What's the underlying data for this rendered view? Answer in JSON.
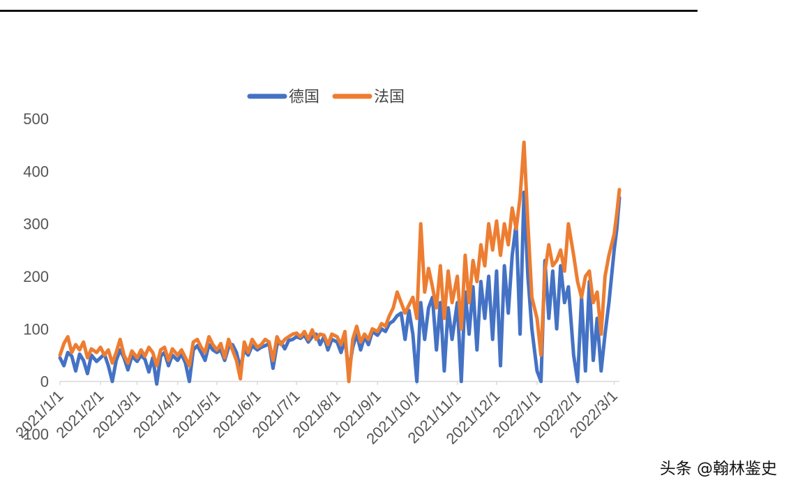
{
  "watermark": "头条 @翰林鉴史",
  "chart_data": {
    "type": "line",
    "title": "",
    "xlabel": "",
    "ylabel": "",
    "ylim": [
      -100,
      500
    ],
    "yticks": [
      -100,
      0,
      100,
      200,
      300,
      400,
      500
    ],
    "x_range": [
      "2021-01-01",
      "2022-03-05"
    ],
    "xtick_labels": [
      "2021/1/1",
      "2021/2/1",
      "2021/3/1",
      "2021/4/1",
      "2021/5/1",
      "2021/6/1",
      "2021/7/1",
      "2021/8/1",
      "2021/9/1",
      "2021/10/1",
      "2021/11/1",
      "2021/12/1",
      "2022/1/1",
      "2022/2/1",
      "2022/3/1"
    ],
    "xtick_dates": [
      "2021-01-01",
      "2021-02-01",
      "2021-03-01",
      "2021-04-01",
      "2021-05-01",
      "2021-06-01",
      "2021-07-01",
      "2021-08-01",
      "2021-09-01",
      "2021-10-01",
      "2021-11-01",
      "2021-12-01",
      "2022-01-01",
      "2022-02-01",
      "2022-03-01"
    ],
    "legend_position": "top",
    "grid": false,
    "series": [
      {
        "name": "德国",
        "color": "#4472C4",
        "points": [
          [
            "2021-01-01",
            45
          ],
          [
            "2021-01-04",
            30
          ],
          [
            "2021-01-07",
            55
          ],
          [
            "2021-01-10",
            48
          ],
          [
            "2021-01-13",
            20
          ],
          [
            "2021-01-16",
            52
          ],
          [
            "2021-01-19",
            40
          ],
          [
            "2021-01-22",
            15
          ],
          [
            "2021-01-25",
            50
          ],
          [
            "2021-01-29",
            38
          ],
          [
            "2021-02-01",
            45
          ],
          [
            "2021-02-04",
            52
          ],
          [
            "2021-02-07",
            30
          ],
          [
            "2021-02-10",
            0
          ],
          [
            "2021-02-13",
            40
          ],
          [
            "2021-02-16",
            60
          ],
          [
            "2021-02-19",
            45
          ],
          [
            "2021-02-22",
            22
          ],
          [
            "2021-02-25",
            48
          ],
          [
            "2021-03-01",
            38
          ],
          [
            "2021-03-04",
            50
          ],
          [
            "2021-03-07",
            42
          ],
          [
            "2021-03-10",
            18
          ],
          [
            "2021-03-13",
            45
          ],
          [
            "2021-03-16",
            -5
          ],
          [
            "2021-03-19",
            48
          ],
          [
            "2021-03-22",
            55
          ],
          [
            "2021-03-25",
            30
          ],
          [
            "2021-03-28",
            50
          ],
          [
            "2021-04-01",
            40
          ],
          [
            "2021-04-04",
            52
          ],
          [
            "2021-04-07",
            35
          ],
          [
            "2021-04-10",
            0
          ],
          [
            "2021-04-13",
            60
          ],
          [
            "2021-04-16",
            68
          ],
          [
            "2021-04-19",
            55
          ],
          [
            "2021-04-22",
            40
          ],
          [
            "2021-04-25",
            70
          ],
          [
            "2021-04-28",
            60
          ],
          [
            "2021-05-01",
            55
          ],
          [
            "2021-05-04",
            60
          ],
          [
            "2021-05-07",
            40
          ],
          [
            "2021-05-10",
            65
          ],
          [
            "2021-05-13",
            70
          ],
          [
            "2021-05-16",
            55
          ],
          [
            "2021-05-19",
            25
          ],
          [
            "2021-05-22",
            60
          ],
          [
            "2021-05-25",
            50
          ],
          [
            "2021-05-28",
            68
          ],
          [
            "2021-06-01",
            60
          ],
          [
            "2021-06-04",
            65
          ],
          [
            "2021-06-07",
            68
          ],
          [
            "2021-06-10",
            72
          ],
          [
            "2021-06-13",
            25
          ],
          [
            "2021-06-16",
            70
          ],
          [
            "2021-06-19",
            75
          ],
          [
            "2021-06-22",
            62
          ],
          [
            "2021-06-25",
            78
          ],
          [
            "2021-06-28",
            80
          ],
          [
            "2021-07-01",
            85
          ],
          [
            "2021-07-04",
            82
          ],
          [
            "2021-07-07",
            88
          ],
          [
            "2021-07-10",
            75
          ],
          [
            "2021-07-13",
            85
          ],
          [
            "2021-07-16",
            90
          ],
          [
            "2021-07-19",
            70
          ],
          [
            "2021-07-22",
            85
          ],
          [
            "2021-07-25",
            60
          ],
          [
            "2021-07-28",
            80
          ],
          [
            "2021-08-01",
            75
          ],
          [
            "2021-08-04",
            55
          ],
          [
            "2021-08-07",
            80
          ],
          [
            "2021-08-10",
            20
          ],
          [
            "2021-08-13",
            65
          ],
          [
            "2021-08-16",
            90
          ],
          [
            "2021-08-19",
            60
          ],
          [
            "2021-08-22",
            85
          ],
          [
            "2021-08-25",
            70
          ],
          [
            "2021-08-28",
            95
          ],
          [
            "2021-09-01",
            88
          ],
          [
            "2021-09-04",
            100
          ],
          [
            "2021-09-07",
            95
          ],
          [
            "2021-09-10",
            110
          ],
          [
            "2021-09-13",
            115
          ],
          [
            "2021-09-16",
            125
          ],
          [
            "2021-09-19",
            130
          ],
          [
            "2021-09-22",
            80
          ],
          [
            "2021-09-25",
            135
          ],
          [
            "2021-09-28",
            90
          ],
          [
            "2021-10-01",
            0
          ],
          [
            "2021-10-04",
            150
          ],
          [
            "2021-10-07",
            80
          ],
          [
            "2021-10-10",
            140
          ],
          [
            "2021-10-13",
            160
          ],
          [
            "2021-10-16",
            60
          ],
          [
            "2021-10-19",
            150
          ],
          [
            "2021-10-22",
            20
          ],
          [
            "2021-10-25",
            140
          ],
          [
            "2021-10-28",
            80
          ],
          [
            "2021-11-01",
            150
          ],
          [
            "2021-11-04",
            0
          ],
          [
            "2021-11-07",
            170
          ],
          [
            "2021-11-10",
            90
          ],
          [
            "2021-11-13",
            180
          ],
          [
            "2021-11-16",
            60
          ],
          [
            "2021-11-19",
            190
          ],
          [
            "2021-11-22",
            120
          ],
          [
            "2021-11-25",
            200
          ],
          [
            "2021-11-28",
            80
          ],
          [
            "2021-12-01",
            210
          ],
          [
            "2021-12-04",
            30
          ],
          [
            "2021-12-07",
            220
          ],
          [
            "2021-12-10",
            130
          ],
          [
            "2021-12-13",
            240
          ],
          [
            "2021-12-16",
            300
          ],
          [
            "2021-12-19",
            90
          ],
          [
            "2021-12-22",
            360
          ],
          [
            "2021-12-25",
            200
          ],
          [
            "2021-12-28",
            100
          ],
          [
            "2022-01-01",
            20
          ],
          [
            "2022-01-04",
            0
          ],
          [
            "2022-01-07",
            230
          ],
          [
            "2022-01-10",
            120
          ],
          [
            "2022-01-13",
            210
          ],
          [
            "2022-01-16",
            100
          ],
          [
            "2022-01-19",
            220
          ],
          [
            "2022-01-22",
            150
          ],
          [
            "2022-01-25",
            180
          ],
          [
            "2022-01-29",
            50
          ],
          [
            "2022-02-01",
            0
          ],
          [
            "2022-02-04",
            160
          ],
          [
            "2022-02-07",
            20
          ],
          [
            "2022-02-10",
            190
          ],
          [
            "2022-02-13",
            40
          ],
          [
            "2022-02-16",
            120
          ],
          [
            "2022-02-19",
            20
          ],
          [
            "2022-02-22",
            90
          ],
          [
            "2022-02-25",
            150
          ],
          [
            "2022-03-01",
            250
          ],
          [
            "2022-03-03",
            290
          ],
          [
            "2022-03-05",
            350
          ]
        ]
      },
      {
        "name": "法国",
        "color": "#ED7D31",
        "points": [
          [
            "2021-01-01",
            50
          ],
          [
            "2021-01-04",
            72
          ],
          [
            "2021-01-07",
            85
          ],
          [
            "2021-01-10",
            55
          ],
          [
            "2021-01-13",
            70
          ],
          [
            "2021-01-16",
            60
          ],
          [
            "2021-01-19",
            75
          ],
          [
            "2021-01-22",
            45
          ],
          [
            "2021-01-25",
            62
          ],
          [
            "2021-01-29",
            55
          ],
          [
            "2021-02-01",
            65
          ],
          [
            "2021-02-04",
            50
          ],
          [
            "2021-02-07",
            60
          ],
          [
            "2021-02-10",
            35
          ],
          [
            "2021-02-13",
            55
          ],
          [
            "2021-02-16",
            80
          ],
          [
            "2021-02-19",
            50
          ],
          [
            "2021-02-22",
            35
          ],
          [
            "2021-02-25",
            58
          ],
          [
            "2021-03-01",
            45
          ],
          [
            "2021-03-04",
            60
          ],
          [
            "2021-03-07",
            48
          ],
          [
            "2021-03-10",
            65
          ],
          [
            "2021-03-13",
            55
          ],
          [
            "2021-03-16",
            30
          ],
          [
            "2021-03-19",
            60
          ],
          [
            "2021-03-22",
            65
          ],
          [
            "2021-03-25",
            40
          ],
          [
            "2021-03-28",
            62
          ],
          [
            "2021-04-01",
            50
          ],
          [
            "2021-04-04",
            60
          ],
          [
            "2021-04-07",
            45
          ],
          [
            "2021-04-10",
            30
          ],
          [
            "2021-04-13",
            75
          ],
          [
            "2021-04-16",
            80
          ],
          [
            "2021-04-19",
            65
          ],
          [
            "2021-04-22",
            55
          ],
          [
            "2021-04-25",
            85
          ],
          [
            "2021-04-28",
            70
          ],
          [
            "2021-05-01",
            60
          ],
          [
            "2021-05-04",
            72
          ],
          [
            "2021-05-07",
            45
          ],
          [
            "2021-05-10",
            80
          ],
          [
            "2021-05-13",
            60
          ],
          [
            "2021-05-16",
            40
          ],
          [
            "2021-05-19",
            5
          ],
          [
            "2021-05-22",
            75
          ],
          [
            "2021-05-25",
            55
          ],
          [
            "2021-05-28",
            80
          ],
          [
            "2021-06-01",
            65
          ],
          [
            "2021-06-04",
            70
          ],
          [
            "2021-06-07",
            80
          ],
          [
            "2021-06-10",
            75
          ],
          [
            "2021-06-13",
            40
          ],
          [
            "2021-06-16",
            85
          ],
          [
            "2021-06-19",
            70
          ],
          [
            "2021-06-22",
            80
          ],
          [
            "2021-06-25",
            85
          ],
          [
            "2021-06-28",
            90
          ],
          [
            "2021-07-01",
            92
          ],
          [
            "2021-07-04",
            85
          ],
          [
            "2021-07-07",
            95
          ],
          [
            "2021-07-10",
            80
          ],
          [
            "2021-07-13",
            98
          ],
          [
            "2021-07-16",
            80
          ],
          [
            "2021-07-19",
            90
          ],
          [
            "2021-07-22",
            88
          ],
          [
            "2021-07-25",
            70
          ],
          [
            "2021-07-28",
            90
          ],
          [
            "2021-08-01",
            85
          ],
          [
            "2021-08-04",
            70
          ],
          [
            "2021-08-07",
            95
          ],
          [
            "2021-08-10",
            0
          ],
          [
            "2021-08-13",
            80
          ],
          [
            "2021-08-16",
            105
          ],
          [
            "2021-08-19",
            75
          ],
          [
            "2021-08-22",
            90
          ],
          [
            "2021-08-25",
            80
          ],
          [
            "2021-08-28",
            100
          ],
          [
            "2021-09-01",
            95
          ],
          [
            "2021-09-04",
            110
          ],
          [
            "2021-09-07",
            105
          ],
          [
            "2021-09-10",
            125
          ],
          [
            "2021-09-13",
            140
          ],
          [
            "2021-09-16",
            170
          ],
          [
            "2021-09-19",
            150
          ],
          [
            "2021-09-22",
            130
          ],
          [
            "2021-09-25",
            145
          ],
          [
            "2021-09-28",
            160
          ],
          [
            "2021-10-01",
            120
          ],
          [
            "2021-10-04",
            300
          ],
          [
            "2021-10-07",
            170
          ],
          [
            "2021-10-10",
            215
          ],
          [
            "2021-10-13",
            180
          ],
          [
            "2021-10-16",
            140
          ],
          [
            "2021-10-19",
            220
          ],
          [
            "2021-10-22",
            120
          ],
          [
            "2021-10-25",
            210
          ],
          [
            "2021-10-28",
            150
          ],
          [
            "2021-11-01",
            200
          ],
          [
            "2021-11-04",
            100
          ],
          [
            "2021-11-07",
            240
          ],
          [
            "2021-11-10",
            150
          ],
          [
            "2021-11-13",
            230
          ],
          [
            "2021-11-16",
            190
          ],
          [
            "2021-11-19",
            260
          ],
          [
            "2021-11-22",
            220
          ],
          [
            "2021-11-25",
            300
          ],
          [
            "2021-11-28",
            250
          ],
          [
            "2021-12-01",
            305
          ],
          [
            "2021-12-04",
            240
          ],
          [
            "2021-12-07",
            300
          ],
          [
            "2021-12-10",
            260
          ],
          [
            "2021-12-13",
            330
          ],
          [
            "2021-12-16",
            290
          ],
          [
            "2021-12-19",
            350
          ],
          [
            "2021-12-22",
            455
          ],
          [
            "2021-12-25",
            300
          ],
          [
            "2021-12-28",
            160
          ],
          [
            "2022-01-01",
            120
          ],
          [
            "2022-01-04",
            50
          ],
          [
            "2022-01-07",
            210
          ],
          [
            "2022-01-10",
            260
          ],
          [
            "2022-01-13",
            220
          ],
          [
            "2022-01-16",
            230
          ],
          [
            "2022-01-19",
            250
          ],
          [
            "2022-01-22",
            210
          ],
          [
            "2022-01-25",
            300
          ],
          [
            "2022-01-29",
            240
          ],
          [
            "2022-02-01",
            190
          ],
          [
            "2022-02-04",
            160
          ],
          [
            "2022-02-07",
            200
          ],
          [
            "2022-02-10",
            210
          ],
          [
            "2022-02-13",
            150
          ],
          [
            "2022-02-16",
            170
          ],
          [
            "2022-02-19",
            90
          ],
          [
            "2022-02-22",
            200
          ],
          [
            "2022-02-25",
            240
          ],
          [
            "2022-03-01",
            280
          ],
          [
            "2022-03-03",
            320
          ],
          [
            "2022-03-05",
            365
          ]
        ]
      }
    ]
  }
}
